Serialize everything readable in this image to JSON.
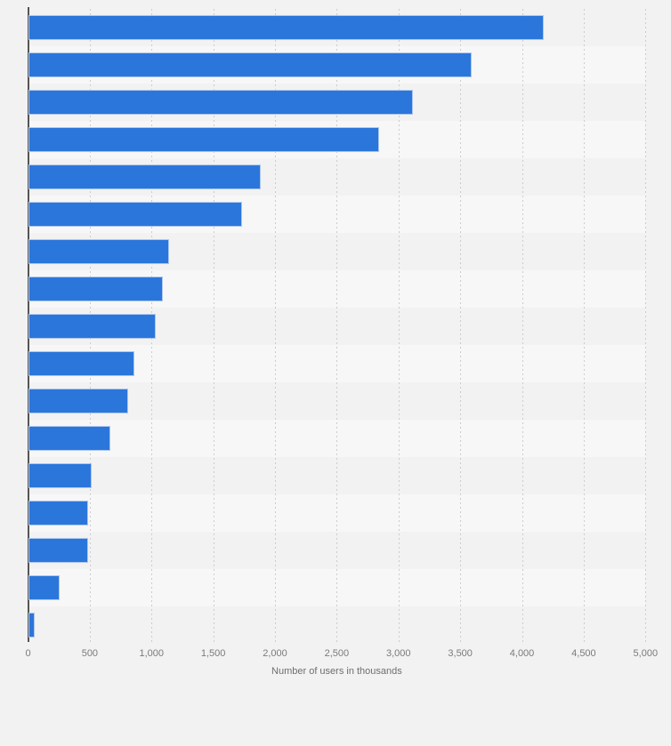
{
  "chart_data": {
    "type": "bar",
    "orientation": "horizontal",
    "title": "",
    "xlabel": "Number of users in thousands",
    "ylabel": "",
    "xlim": [
      0,
      5000
    ],
    "x_ticks": [
      0,
      500,
      1000,
      1500,
      2000,
      2500,
      3000,
      3500,
      4000,
      4500,
      5000
    ],
    "x_tick_labels": [
      "0",
      "500",
      "1,000",
      "1,500",
      "2,000",
      "2,500",
      "3,000",
      "3,500",
      "4,000",
      "4,500",
      "5,000"
    ],
    "values": [
      4170,
      3590,
      3110,
      2840,
      1880,
      1730,
      1140,
      1090,
      1030,
      860,
      810,
      660,
      510,
      480,
      485,
      250,
      50
    ],
    "bar_count": 17,
    "category_labels_visible": false,
    "grid": "vertical-dotted",
    "legend": false,
    "colors": {
      "bar_fill": "#2b76db",
      "bar_border": "#aec7ee",
      "background": "#f2f2f2",
      "row_stripe": "#f7f7f7",
      "gridline": "#cccccc",
      "axis_line": "#555555",
      "tick_text": "#7a7a7a",
      "axis_title_text": "#6e6e6e"
    }
  }
}
